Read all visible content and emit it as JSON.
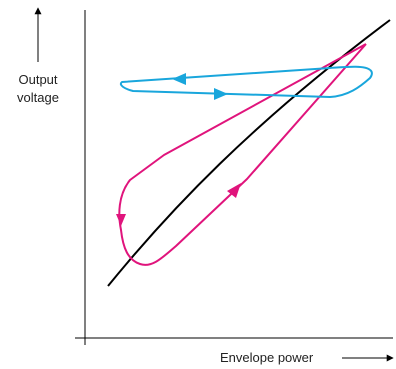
{
  "labels": {
    "y_axis_line1": "Output",
    "y_axis_line2": "voltage",
    "x_axis": "Envelope power"
  },
  "colors": {
    "axis": "#000000",
    "transfer_curve": "#000000",
    "magenta_loop": "#e0147c",
    "cyan_loop": "#19a6dc"
  }
}
